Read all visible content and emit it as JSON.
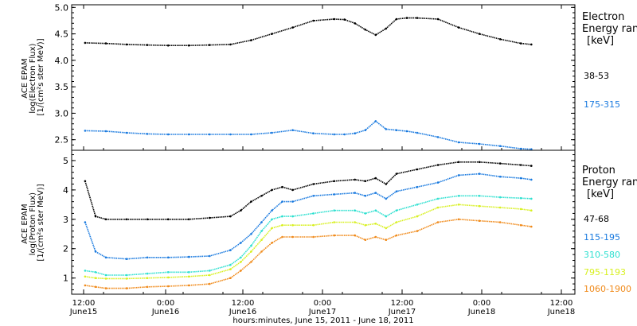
{
  "x_axis": {
    "title": "hours:minutes, June 15, 2011 - June 18, 2011",
    "tick_times": [
      "12:00",
      "0:00",
      "12:00",
      "0:00",
      "12:00",
      "0:00",
      "12:00"
    ],
    "tick_dates": [
      "June15",
      "June16",
      "June16",
      "June17",
      "June17",
      "June18",
      "June18"
    ]
  },
  "colors": {
    "black": "#000000",
    "blue": "#1a7adf",
    "cyan": "#2fe0d0",
    "yellow": "#d8f020",
    "orange": "#f08a1a"
  },
  "chart_data": [
    {
      "type": "scatter",
      "panel": "top",
      "ylabel_lines": [
        "ACE EPAM",
        "log(Electron Flux)",
        "[1/(cm²s ster MeV)]"
      ],
      "legend_title": [
        "Electron",
        "Energy ran",
        "[keV]"
      ],
      "ylim": [
        2.3,
        5.05
      ],
      "yticks": [
        "2.5",
        "3.0",
        "3.5",
        "4.0",
        "4.5",
        "5.0"
      ],
      "x_hours": [
        0,
        4,
        8,
        12,
        16,
        20,
        24,
        28,
        32,
        36,
        40,
        44,
        48,
        50,
        52,
        54,
        56,
        58,
        60,
        62,
        64,
        68,
        72,
        76,
        80,
        84,
        86
      ],
      "series": [
        {
          "name": "38-53",
          "color": "#000000",
          "values": [
            4.33,
            4.32,
            4.3,
            4.29,
            4.28,
            4.28,
            4.29,
            4.3,
            4.38,
            4.5,
            4.62,
            4.75,
            4.78,
            4.77,
            4.7,
            4.58,
            4.48,
            4.6,
            4.78,
            4.8,
            4.8,
            4.78,
            4.62,
            4.5,
            4.4,
            4.32,
            4.3
          ]
        },
        {
          "name": "175-315",
          "color": "#1a7adf",
          "values": [
            2.67,
            2.66,
            2.63,
            2.61,
            2.6,
            2.6,
            2.6,
            2.6,
            2.6,
            2.63,
            2.68,
            2.62,
            2.6,
            2.6,
            2.62,
            2.68,
            2.85,
            2.7,
            2.68,
            2.66,
            2.63,
            2.55,
            2.45,
            2.42,
            2.38,
            2.33,
            2.32
          ]
        }
      ]
    },
    {
      "type": "scatter",
      "panel": "bottom",
      "ylabel_lines": [
        "ACE EPAM",
        "log(Proton Flux)",
        "[1/(cm²s ster MeV)]"
      ],
      "legend_title": [
        "Proton",
        "Energy ran",
        "[keV]"
      ],
      "ylim": [
        0.45,
        5.35
      ],
      "yticks": [
        "1",
        "2",
        "3",
        "4",
        "5"
      ],
      "x_hours": [
        0,
        2,
        4,
        8,
        12,
        16,
        20,
        24,
        28,
        30,
        32,
        34,
        36,
        38,
        40,
        44,
        48,
        52,
        54,
        56,
        58,
        60,
        64,
        68,
        72,
        76,
        80,
        84,
        86
      ],
      "series": [
        {
          "name": "47-68",
          "color": "#000000",
          "values": [
            4.3,
            3.1,
            3.0,
            3.0,
            3.0,
            3.0,
            3.0,
            3.05,
            3.1,
            3.3,
            3.6,
            3.8,
            4.0,
            4.1,
            4.0,
            4.2,
            4.3,
            4.35,
            4.3,
            4.4,
            4.2,
            4.55,
            4.7,
            4.85,
            4.95,
            4.95,
            4.9,
            4.85,
            4.82
          ]
        },
        {
          "name": "115-195",
          "color": "#1a7adf",
          "values": [
            2.9,
            1.9,
            1.7,
            1.65,
            1.7,
            1.7,
            1.72,
            1.75,
            1.95,
            2.2,
            2.5,
            2.9,
            3.3,
            3.6,
            3.6,
            3.8,
            3.85,
            3.9,
            3.8,
            3.9,
            3.7,
            3.95,
            4.1,
            4.25,
            4.5,
            4.55,
            4.45,
            4.4,
            4.35
          ]
        },
        {
          "name": "310-580",
          "color": "#2fe0d0",
          "values": [
            1.25,
            1.2,
            1.1,
            1.1,
            1.15,
            1.2,
            1.2,
            1.25,
            1.45,
            1.7,
            2.1,
            2.6,
            3.0,
            3.1,
            3.1,
            3.2,
            3.3,
            3.3,
            3.2,
            3.3,
            3.1,
            3.3,
            3.5,
            3.7,
            3.8,
            3.8,
            3.75,
            3.72,
            3.7
          ]
        },
        {
          "name": "795-1193",
          "color": "#d8f020",
          "values": [
            1.05,
            1.0,
            0.98,
            0.98,
            1.0,
            1.02,
            1.05,
            1.1,
            1.3,
            1.55,
            1.9,
            2.3,
            2.7,
            2.8,
            2.8,
            2.8,
            2.9,
            2.9,
            2.8,
            2.85,
            2.7,
            2.9,
            3.1,
            3.4,
            3.5,
            3.45,
            3.4,
            3.35,
            3.3
          ]
        },
        {
          "name": "1060-1900",
          "color": "#f08a1a",
          "values": [
            0.75,
            0.7,
            0.65,
            0.65,
            0.7,
            0.72,
            0.75,
            0.8,
            1.0,
            1.25,
            1.55,
            1.9,
            2.2,
            2.4,
            2.4,
            2.4,
            2.45,
            2.45,
            2.3,
            2.4,
            2.3,
            2.45,
            2.6,
            2.9,
            3.0,
            2.95,
            2.9,
            2.8,
            2.75
          ]
        }
      ]
    }
  ]
}
